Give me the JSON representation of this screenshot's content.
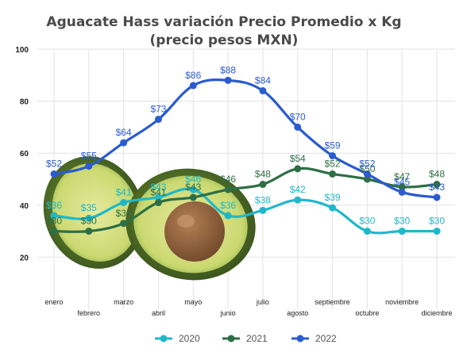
{
  "chart_data": {
    "type": "line",
    "title": "Aguacate Hass variación Precio Promedio x Kg",
    "subtitle": "(precio pesos MXN)",
    "xlabel": "",
    "ylabel": "",
    "ylim": [
      0,
      100
    ],
    "yticks": [
      20,
      40,
      60,
      80,
      100
    ],
    "grid": true,
    "legend_position": "bottom",
    "categories": [
      "enero",
      "febrero",
      "marzo",
      "abril",
      "mayo",
      "junio",
      "julio",
      "agosto",
      "septiembre",
      "octubre",
      "noviembre",
      "diciembre"
    ],
    "series": [
      {
        "name": "2020",
        "color": "#1fb8c9",
        "values": [
          36,
          35,
          41,
          43,
          46,
          36,
          38,
          42,
          39,
          30,
          30,
          30
        ],
        "labels": [
          "$36",
          "$35",
          "$41",
          "$43",
          "$46",
          "$36",
          "$38",
          "$42",
          "$39",
          "$30",
          "$30",
          "$30"
        ]
      },
      {
        "name": "2021",
        "color": "#2e6e45",
        "values": [
          30,
          30,
          33,
          41,
          43,
          46,
          48,
          54,
          52,
          50,
          47,
          48
        ],
        "labels": [
          "$30",
          "$30",
          "$33",
          "$41",
          "$43",
          "$46",
          "$48",
          "$54",
          "$52",
          "$50",
          "$47",
          "$48"
        ]
      },
      {
        "name": "2022",
        "color": "#2a5bd0",
        "values": [
          52,
          55,
          64,
          73,
          86,
          88,
          84,
          70,
          59,
          52,
          45,
          43
        ],
        "labels": [
          "$52",
          "$55",
          "$64",
          "$73",
          "$86",
          "$88",
          "$84",
          "$70",
          "$59",
          "$52",
          "$45",
          "$43"
        ]
      }
    ]
  }
}
